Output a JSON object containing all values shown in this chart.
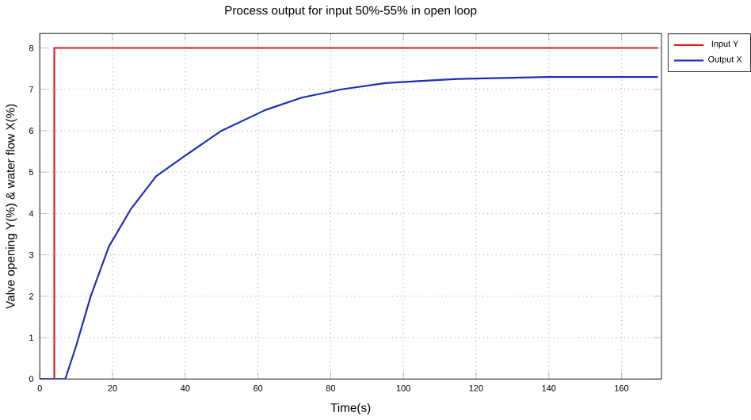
{
  "chart_data": {
    "type": "line",
    "title": "Process output for input 50%-55% in open loop",
    "xlabel": "Time(s)",
    "ylabel": "Valve opening Y(%) & water flow X(%)",
    "xlim": [
      0,
      171
    ],
    "ylim": [
      0,
      8.35
    ],
    "xticks": [
      0,
      20,
      40,
      60,
      80,
      100,
      120,
      140,
      160
    ],
    "yticks": [
      0,
      1,
      2,
      3,
      4,
      5,
      6,
      7,
      8
    ],
    "grid": true,
    "legend": "top right",
    "series": [
      {
        "name": "Input Y",
        "color": "#d62020",
        "x": [
          4,
          4,
          170
        ],
        "values": [
          0,
          8,
          8
        ]
      },
      {
        "name": "Output X",
        "color": "#1a2fb8",
        "x": [
          0,
          7,
          10,
          14,
          19,
          25,
          32,
          40,
          50,
          62,
          72,
          83,
          95,
          104,
          115,
          125,
          140,
          155,
          170
        ],
        "values": [
          0,
          0,
          0.8,
          2.0,
          3.2,
          4.1,
          4.9,
          5.4,
          6.0,
          6.5,
          6.8,
          7.0,
          7.15,
          7.2,
          7.25,
          7.27,
          7.3,
          7.3,
          7.3
        ]
      }
    ]
  }
}
